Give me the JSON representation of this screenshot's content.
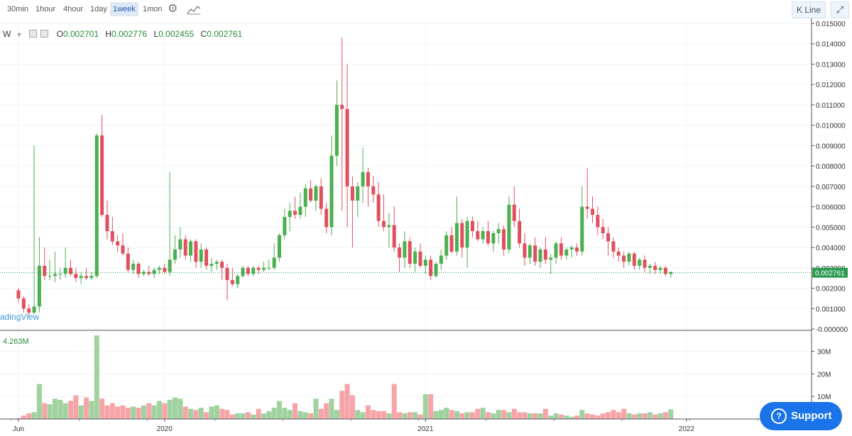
{
  "toolbar": {
    "timeframes": [
      "30min",
      "1hour",
      "4hour",
      "1day",
      "1week",
      "1mon"
    ],
    "active": "1week",
    "settings_icon": "gear-icon",
    "indicator_icon": "chart-indicator-icon",
    "kline_label": "K Line",
    "expand_icon": "expand-icon"
  },
  "legend": {
    "symbol": "W",
    "open_key": "O",
    "open": "0.002701",
    "high_key": "H",
    "high": "0.002776",
    "low_key": "L",
    "low": "0.002455",
    "close_key": "C",
    "close": "0.002761"
  },
  "watermark": "adingView",
  "volume_label": "4.263M",
  "support_label": "Support",
  "colors": {
    "up": "#4caf50",
    "down": "#e0505f",
    "up_vol": "#9fd29f",
    "down_vol": "#f7a4a9",
    "last_line": "#2c9b50"
  },
  "chart_data": {
    "type": "candlestick",
    "interval": "1week",
    "price_axis": {
      "ticks": [
        "0.015000",
        "0.014000",
        "0.013000",
        "0.012000",
        "0.011000",
        "0.010000",
        "0.009000",
        "0.008000",
        "0.007000",
        "0.006000",
        "0.005000",
        "0.004000",
        "0.003000",
        "0.002000",
        "0.001000",
        "-0.000000"
      ],
      "tick_values": [
        0.015,
        0.014,
        0.013,
        0.012,
        0.011,
        0.01,
        0.009,
        0.008,
        0.007,
        0.006,
        0.005,
        0.004,
        0.003,
        0.002,
        0.001,
        0.0
      ],
      "range": [
        0.0,
        0.015
      ],
      "last_price_label": "0.002761",
      "last_price": 0.002761
    },
    "volume_axis": {
      "ticks": [
        "30M",
        "20M",
        "10M"
      ],
      "tick_values": [
        30000000,
        20000000,
        10000000
      ],
      "range": [
        0,
        38000000
      ]
    },
    "time_axis": {
      "labels": [
        "Jun",
        "2020",
        "2021",
        "2022"
      ],
      "label_indices": [
        0,
        28,
        78,
        128
      ]
    },
    "candles": [
      {
        "o": 0.0019,
        "h": 0.002,
        "l": 0.0013,
        "c": 0.0015,
        "v": 400000
      },
      {
        "o": 0.0015,
        "h": 0.0016,
        "l": 0.0008,
        "c": 0.001,
        "v": 1500000
      },
      {
        "o": 0.001,
        "h": 0.0012,
        "l": 0.0006,
        "c": 0.0008,
        "v": 2500000
      },
      {
        "o": 0.0008,
        "h": 0.009,
        "l": 0.0007,
        "c": 0.0011,
        "v": 3000000
      },
      {
        "o": 0.0011,
        "h": 0.0045,
        "l": 0.0008,
        "c": 0.0031,
        "v": 15500000
      },
      {
        "o": 0.0031,
        "h": 0.004,
        "l": 0.0024,
        "c": 0.0026,
        "v": 7000000
      },
      {
        "o": 0.0026,
        "h": 0.0034,
        "l": 0.0024,
        "c": 0.0026,
        "v": 6500000
      },
      {
        "o": 0.0026,
        "h": 0.0038,
        "l": 0.0023,
        "c": 0.0027,
        "v": 9000000
      },
      {
        "o": 0.0027,
        "h": 0.003,
        "l": 0.0024,
        "c": 0.0027,
        "v": 8500000
      },
      {
        "o": 0.0027,
        "h": 0.004,
        "l": 0.0025,
        "c": 0.003,
        "v": 7000000
      },
      {
        "o": 0.003,
        "h": 0.0034,
        "l": 0.0026,
        "c": 0.0027,
        "v": 8000000
      },
      {
        "o": 0.0027,
        "h": 0.003,
        "l": 0.0023,
        "c": 0.0025,
        "v": 10500000
      },
      {
        "o": 0.0025,
        "h": 0.0028,
        "l": 0.0022,
        "c": 0.0026,
        "v": 6000000
      },
      {
        "o": 0.0026,
        "h": 0.003,
        "l": 0.0024,
        "c": 0.0025,
        "v": 9500000
      },
      {
        "o": 0.0025,
        "h": 0.0028,
        "l": 0.0024,
        "c": 0.0026,
        "v": 8000000
      },
      {
        "o": 0.0026,
        "h": 0.0096,
        "l": 0.0025,
        "c": 0.0095,
        "v": 37000000
      },
      {
        "o": 0.0095,
        "h": 0.0105,
        "l": 0.0055,
        "c": 0.0056,
        "v": 9000000
      },
      {
        "o": 0.0056,
        "h": 0.0063,
        "l": 0.0044,
        "c": 0.0048,
        "v": 6000000
      },
      {
        "o": 0.0048,
        "h": 0.0055,
        "l": 0.0041,
        "c": 0.0043,
        "v": 7000000
      },
      {
        "o": 0.0043,
        "h": 0.0046,
        "l": 0.0038,
        "c": 0.0041,
        "v": 5500000
      },
      {
        "o": 0.0041,
        "h": 0.0047,
        "l": 0.0036,
        "c": 0.0037,
        "v": 6000000
      },
      {
        "o": 0.0037,
        "h": 0.004,
        "l": 0.0028,
        "c": 0.0029,
        "v": 5000000
      },
      {
        "o": 0.0029,
        "h": 0.0034,
        "l": 0.0027,
        "c": 0.0032,
        "v": 5500000
      },
      {
        "o": 0.0032,
        "h": 0.0033,
        "l": 0.0025,
        "c": 0.0027,
        "v": 5000000
      },
      {
        "o": 0.0027,
        "h": 0.0029,
        "l": 0.0026,
        "c": 0.0028,
        "v": 6000000
      },
      {
        "o": 0.0028,
        "h": 0.0031,
        "l": 0.0026,
        "c": 0.0027,
        "v": 7000000
      },
      {
        "o": 0.0027,
        "h": 0.003,
        "l": 0.0025,
        "c": 0.0029,
        "v": 6000000
      },
      {
        "o": 0.0029,
        "h": 0.0031,
        "l": 0.0027,
        "c": 0.003,
        "v": 8000000
      },
      {
        "o": 0.003,
        "h": 0.0032,
        "l": 0.0027,
        "c": 0.0028,
        "v": 7000000
      },
      {
        "o": 0.0028,
        "h": 0.0077,
        "l": 0.0026,
        "c": 0.0034,
        "v": 8500000
      },
      {
        "o": 0.0034,
        "h": 0.0046,
        "l": 0.0032,
        "c": 0.0039,
        "v": 9500000
      },
      {
        "o": 0.0039,
        "h": 0.005,
        "l": 0.0035,
        "c": 0.0044,
        "v": 9000000
      },
      {
        "o": 0.0044,
        "h": 0.0046,
        "l": 0.0034,
        "c": 0.0036,
        "v": 5500000
      },
      {
        "o": 0.0036,
        "h": 0.0044,
        "l": 0.0033,
        "c": 0.0043,
        "v": 4500000
      },
      {
        "o": 0.0043,
        "h": 0.0044,
        "l": 0.003,
        "c": 0.0033,
        "v": 4000000
      },
      {
        "o": 0.0033,
        "h": 0.0042,
        "l": 0.003,
        "c": 0.0039,
        "v": 5000000
      },
      {
        "o": 0.0039,
        "h": 0.004,
        "l": 0.0029,
        "c": 0.0031,
        "v": 3000000
      },
      {
        "o": 0.0031,
        "h": 0.0035,
        "l": 0.0028,
        "c": 0.0032,
        "v": 5500000
      },
      {
        "o": 0.0032,
        "h": 0.0034,
        "l": 0.0029,
        "c": 0.0033,
        "v": 6000000
      },
      {
        "o": 0.0033,
        "h": 0.0034,
        "l": 0.0024,
        "c": 0.003,
        "v": 4500000
      },
      {
        "o": 0.003,
        "h": 0.0032,
        "l": 0.0014,
        "c": 0.0024,
        "v": 4000000
      },
      {
        "o": 0.0024,
        "h": 0.003,
        "l": 0.0021,
        "c": 0.0022,
        "v": 2000000
      },
      {
        "o": 0.0022,
        "h": 0.0027,
        "l": 0.002,
        "c": 0.0026,
        "v": 2500000
      },
      {
        "o": 0.0026,
        "h": 0.0031,
        "l": 0.0025,
        "c": 0.003,
        "v": 2500000
      },
      {
        "o": 0.003,
        "h": 0.0031,
        "l": 0.0026,
        "c": 0.0027,
        "v": 3000000
      },
      {
        "o": 0.0027,
        "h": 0.0031,
        "l": 0.0026,
        "c": 0.003,
        "v": 2000000
      },
      {
        "o": 0.003,
        "h": 0.0031,
        "l": 0.0027,
        "c": 0.0029,
        "v": 4500000
      },
      {
        "o": 0.0029,
        "h": 0.0033,
        "l": 0.0028,
        "c": 0.003,
        "v": 2500000
      },
      {
        "o": 0.003,
        "h": 0.0034,
        "l": 0.0029,
        "c": 0.003,
        "v": 3500000
      },
      {
        "o": 0.003,
        "h": 0.0042,
        "l": 0.0029,
        "c": 0.0035,
        "v": 5000000
      },
      {
        "o": 0.0035,
        "h": 0.0047,
        "l": 0.0033,
        "c": 0.0046,
        "v": 8000000
      },
      {
        "o": 0.0046,
        "h": 0.0059,
        "l": 0.0044,
        "c": 0.0055,
        "v": 5000000
      },
      {
        "o": 0.0055,
        "h": 0.0062,
        "l": 0.0048,
        "c": 0.0058,
        "v": 4000000
      },
      {
        "o": 0.0058,
        "h": 0.0065,
        "l": 0.0054,
        "c": 0.0056,
        "v": 7000000
      },
      {
        "o": 0.0056,
        "h": 0.0067,
        "l": 0.0054,
        "c": 0.006,
        "v": 3500000
      },
      {
        "o": 0.006,
        "h": 0.0071,
        "l": 0.0055,
        "c": 0.0069,
        "v": 3000000
      },
      {
        "o": 0.0069,
        "h": 0.0073,
        "l": 0.0062,
        "c": 0.0063,
        "v": 2500000
      },
      {
        "o": 0.0063,
        "h": 0.0071,
        "l": 0.0058,
        "c": 0.007,
        "v": 9000000
      },
      {
        "o": 0.007,
        "h": 0.0074,
        "l": 0.0056,
        "c": 0.0059,
        "v": 4500000
      },
      {
        "o": 0.0059,
        "h": 0.0062,
        "l": 0.0047,
        "c": 0.005,
        "v": 7000000
      },
      {
        "o": 0.005,
        "h": 0.0095,
        "l": 0.0046,
        "c": 0.0085,
        "v": 9000000
      },
      {
        "o": 0.0085,
        "h": 0.0122,
        "l": 0.008,
        "c": 0.011,
        "v": 4000000
      },
      {
        "o": 0.011,
        "h": 0.0143,
        "l": 0.0058,
        "c": 0.0108,
        "v": 12500000
      },
      {
        "o": 0.0108,
        "h": 0.013,
        "l": 0.005,
        "c": 0.007,
        "v": 15500000
      },
      {
        "o": 0.007,
        "h": 0.0075,
        "l": 0.004,
        "c": 0.0063,
        "v": 10500000
      },
      {
        "o": 0.0063,
        "h": 0.0072,
        "l": 0.0055,
        "c": 0.007,
        "v": 4000000
      },
      {
        "o": 0.007,
        "h": 0.0089,
        "l": 0.0062,
        "c": 0.0077,
        "v": 3000000
      },
      {
        "o": 0.0077,
        "h": 0.0079,
        "l": 0.006,
        "c": 0.007,
        "v": 6000000
      },
      {
        "o": 0.007,
        "h": 0.0075,
        "l": 0.0062,
        "c": 0.0066,
        "v": 4000000
      },
      {
        "o": 0.0066,
        "h": 0.0072,
        "l": 0.005,
        "c": 0.0053,
        "v": 3500000
      },
      {
        "o": 0.0053,
        "h": 0.0066,
        "l": 0.0048,
        "c": 0.005,
        "v": 3500000
      },
      {
        "o": 0.005,
        "h": 0.0057,
        "l": 0.004,
        "c": 0.0051,
        "v": 2500000
      },
      {
        "o": 0.0051,
        "h": 0.006,
        "l": 0.0038,
        "c": 0.004,
        "v": 15500000
      },
      {
        "o": 0.004,
        "h": 0.0042,
        "l": 0.0028,
        "c": 0.0035,
        "v": 3000000
      },
      {
        "o": 0.0035,
        "h": 0.0048,
        "l": 0.003,
        "c": 0.0043,
        "v": 2500000
      },
      {
        "o": 0.0043,
        "h": 0.0045,
        "l": 0.003,
        "c": 0.0032,
        "v": 3000000
      },
      {
        "o": 0.0032,
        "h": 0.004,
        "l": 0.0028,
        "c": 0.0038,
        "v": 3000000
      },
      {
        "o": 0.0038,
        "h": 0.0042,
        "l": 0.003,
        "c": 0.0031,
        "v": 2000000
      },
      {
        "o": 0.0031,
        "h": 0.0036,
        "l": 0.0027,
        "c": 0.0034,
        "v": 11000000
      },
      {
        "o": 0.0034,
        "h": 0.0036,
        "l": 0.0024,
        "c": 0.0026,
        "v": 11000000
      },
      {
        "o": 0.0026,
        "h": 0.0033,
        "l": 0.0025,
        "c": 0.0032,
        "v": 3500000
      },
      {
        "o": 0.0032,
        "h": 0.0039,
        "l": 0.0029,
        "c": 0.0036,
        "v": 4000000
      },
      {
        "o": 0.0036,
        "h": 0.0048,
        "l": 0.0034,
        "c": 0.0046,
        "v": 5000000
      },
      {
        "o": 0.0046,
        "h": 0.005,
        "l": 0.0037,
        "c": 0.0038,
        "v": 4000000
      },
      {
        "o": 0.0038,
        "h": 0.0065,
        "l": 0.0036,
        "c": 0.0052,
        "v": 3500000
      },
      {
        "o": 0.0052,
        "h": 0.0054,
        "l": 0.0035,
        "c": 0.004,
        "v": 2500000
      },
      {
        "o": 0.004,
        "h": 0.0055,
        "l": 0.003,
        "c": 0.0053,
        "v": 3000000
      },
      {
        "o": 0.0053,
        "h": 0.0055,
        "l": 0.0045,
        "c": 0.0048,
        "v": 3000000
      },
      {
        "o": 0.0048,
        "h": 0.0053,
        "l": 0.0043,
        "c": 0.0044,
        "v": 4500000
      },
      {
        "o": 0.0044,
        "h": 0.005,
        "l": 0.0042,
        "c": 0.0048,
        "v": 5000000
      },
      {
        "o": 0.0048,
        "h": 0.0053,
        "l": 0.0041,
        "c": 0.0042,
        "v": 3000000
      },
      {
        "o": 0.0042,
        "h": 0.0048,
        "l": 0.0038,
        "c": 0.0047,
        "v": 2500000
      },
      {
        "o": 0.0047,
        "h": 0.0052,
        "l": 0.0042,
        "c": 0.0049,
        "v": 4000000
      },
      {
        "o": 0.0049,
        "h": 0.0051,
        "l": 0.0036,
        "c": 0.0039,
        "v": 4000000
      },
      {
        "o": 0.0039,
        "h": 0.0065,
        "l": 0.0037,
        "c": 0.0061,
        "v": 3000000
      },
      {
        "o": 0.0061,
        "h": 0.007,
        "l": 0.005,
        "c": 0.0053,
        "v": 4500000
      },
      {
        "o": 0.0053,
        "h": 0.0059,
        "l": 0.004,
        "c": 0.0042,
        "v": 3000000
      },
      {
        "o": 0.0042,
        "h": 0.0047,
        "l": 0.0031,
        "c": 0.0035,
        "v": 3000000
      },
      {
        "o": 0.0035,
        "h": 0.0042,
        "l": 0.0032,
        "c": 0.0041,
        "v": 2500000
      },
      {
        "o": 0.0041,
        "h": 0.0045,
        "l": 0.0031,
        "c": 0.0033,
        "v": 2500000
      },
      {
        "o": 0.0033,
        "h": 0.004,
        "l": 0.003,
        "c": 0.0039,
        "v": 2500000
      },
      {
        "o": 0.0039,
        "h": 0.0045,
        "l": 0.0032,
        "c": 0.0034,
        "v": 4500000
      },
      {
        "o": 0.0034,
        "h": 0.0037,
        "l": 0.0027,
        "c": 0.0035,
        "v": 1500000
      },
      {
        "o": 0.0035,
        "h": 0.0043,
        "l": 0.0032,
        "c": 0.0042,
        "v": 2500000
      },
      {
        "o": 0.0042,
        "h": 0.0045,
        "l": 0.0034,
        "c": 0.0036,
        "v": 2000000
      },
      {
        "o": 0.0036,
        "h": 0.004,
        "l": 0.0034,
        "c": 0.0039,
        "v": 1500000
      },
      {
        "o": 0.0039,
        "h": 0.0041,
        "l": 0.0035,
        "c": 0.004,
        "v": 1000000
      },
      {
        "o": 0.004,
        "h": 0.0042,
        "l": 0.0036,
        "c": 0.0038,
        "v": 1500000
      },
      {
        "o": 0.0038,
        "h": 0.007,
        "l": 0.0036,
        "c": 0.006,
        "v": 4000000
      },
      {
        "o": 0.006,
        "h": 0.0079,
        "l": 0.0054,
        "c": 0.0059,
        "v": 2500000
      },
      {
        "o": 0.0059,
        "h": 0.0065,
        "l": 0.0052,
        "c": 0.0056,
        "v": 2000000
      },
      {
        "o": 0.0056,
        "h": 0.006,
        "l": 0.0046,
        "c": 0.005,
        "v": 1500000
      },
      {
        "o": 0.005,
        "h": 0.0054,
        "l": 0.0044,
        "c": 0.0047,
        "v": 2500000
      },
      {
        "o": 0.0047,
        "h": 0.005,
        "l": 0.0036,
        "c": 0.0043,
        "v": 3000000
      },
      {
        "o": 0.0043,
        "h": 0.0045,
        "l": 0.0035,
        "c": 0.0038,
        "v": 4000000
      },
      {
        "o": 0.0038,
        "h": 0.004,
        "l": 0.0033,
        "c": 0.0036,
        "v": 3000000
      },
      {
        "o": 0.0036,
        "h": 0.0038,
        "l": 0.003,
        "c": 0.0033,
        "v": 4500000
      },
      {
        "o": 0.0033,
        "h": 0.0038,
        "l": 0.0031,
        "c": 0.0037,
        "v": 2500000
      },
      {
        "o": 0.0037,
        "h": 0.0038,
        "l": 0.0029,
        "c": 0.0031,
        "v": 2000000
      },
      {
        "o": 0.0031,
        "h": 0.0035,
        "l": 0.0029,
        "c": 0.0034,
        "v": 2500000
      },
      {
        "o": 0.0034,
        "h": 0.0036,
        "l": 0.0028,
        "c": 0.003,
        "v": 2500000
      },
      {
        "o": 0.003,
        "h": 0.0032,
        "l": 0.0027,
        "c": 0.0031,
        "v": 3000000
      },
      {
        "o": 0.0031,
        "h": 0.0033,
        "l": 0.0027,
        "c": 0.0029,
        "v": 2000000
      },
      {
        "o": 0.0029,
        "h": 0.0031,
        "l": 0.0027,
        "c": 0.003,
        "v": 2500000
      },
      {
        "o": 0.003,
        "h": 0.0031,
        "l": 0.0026,
        "c": 0.0027,
        "v": 3000000
      },
      {
        "o": 0.0027,
        "h": 0.0028,
        "l": 0.0025,
        "c": 0.0028,
        "v": 4263000
      }
    ]
  }
}
